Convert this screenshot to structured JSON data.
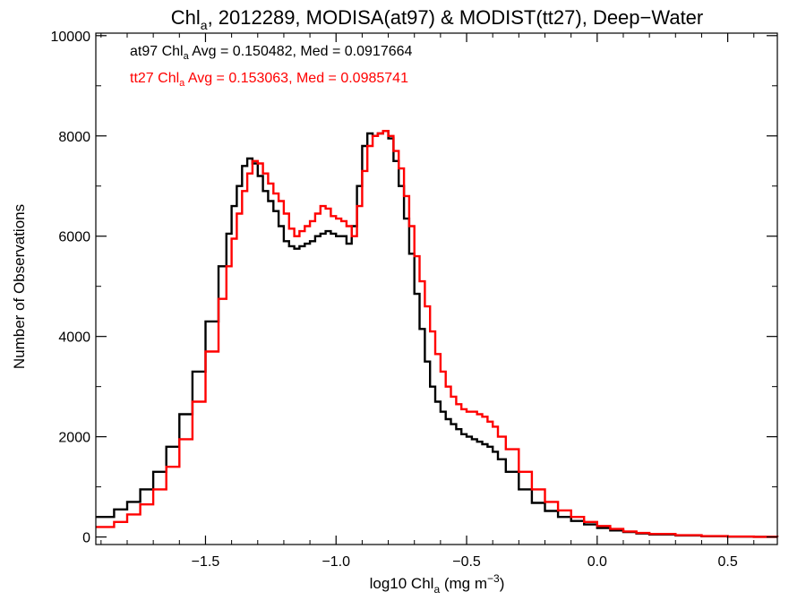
{
  "colors": {
    "background": "#ffffff",
    "axes": "#000000",
    "series_at97": "#000000",
    "series_tt27": "#ff0000"
  },
  "chart_data": {
    "type": "line",
    "style": "histogram-step",
    "title": {
      "pre": "Chl",
      "sub": "a",
      "post": ", 2012289, MODISA(at97) & MODIST(tt27), Deep−Water"
    },
    "xlabel": {
      "pre": "log10 Chl",
      "sub": "a",
      "mid": " (mg m",
      "sup": "−3",
      "post": ")"
    },
    "ylabel": "Number of Observations",
    "xlim": [
      -1.92,
      0.69
    ],
    "ylim": [
      -150,
      10050
    ],
    "x_ticks": [
      -1.5,
      -1.0,
      -0.5,
      0.0,
      0.5
    ],
    "x_tick_labels": [
      "−1.5",
      "−1.0",
      "−0.5",
      "0.0",
      "0.5"
    ],
    "y_ticks": [
      0,
      2000,
      4000,
      6000,
      8000,
      10000
    ],
    "y_tick_labels": [
      "0",
      "2000",
      "4000",
      "6000",
      "8000",
      "10000"
    ],
    "grid": false,
    "annotations": [
      {
        "color": "#000000",
        "pre": "at97 Chl",
        "sub": "a",
        "post": " Avg = 0.150482, Med = 0.0917664"
      },
      {
        "color": "#ff0000",
        "pre": "tt27 Chl",
        "sub": "a",
        "post": " Avg = 0.153063, Med = 0.0985741"
      }
    ],
    "series": [
      {
        "name": "at97",
        "color": "#000000",
        "x": [
          -1.92,
          -1.85,
          -1.8,
          -1.75,
          -1.7,
          -1.65,
          -1.6,
          -1.55,
          -1.5,
          -1.45,
          -1.42,
          -1.4,
          -1.38,
          -1.36,
          -1.34,
          -1.32,
          -1.3,
          -1.28,
          -1.26,
          -1.24,
          -1.22,
          -1.2,
          -1.18,
          -1.16,
          -1.14,
          -1.12,
          -1.1,
          -1.08,
          -1.06,
          -1.04,
          -1.02,
          -1.0,
          -0.98,
          -0.96,
          -0.94,
          -0.92,
          -0.9,
          -0.88,
          -0.86,
          -0.84,
          -0.82,
          -0.8,
          -0.78,
          -0.76,
          -0.74,
          -0.72,
          -0.7,
          -0.68,
          -0.66,
          -0.64,
          -0.62,
          -0.6,
          -0.58,
          -0.56,
          -0.54,
          -0.52,
          -0.5,
          -0.48,
          -0.46,
          -0.44,
          -0.42,
          -0.4,
          -0.38,
          -0.35,
          -0.3,
          -0.25,
          -0.2,
          -0.15,
          -0.1,
          -0.05,
          0.0,
          0.05,
          0.1,
          0.15,
          0.2,
          0.3,
          0.4,
          0.5,
          0.6,
          0.69
        ],
        "y": [
          400,
          550,
          700,
          950,
          1300,
          1800,
          2450,
          3300,
          4300,
          5400,
          6050,
          6600,
          7000,
          7400,
          7550,
          7450,
          7200,
          6900,
          6700,
          6500,
          6200,
          5900,
          5800,
          5750,
          5800,
          5850,
          5900,
          6000,
          6050,
          6100,
          6050,
          6000,
          6000,
          5850,
          6200,
          7000,
          7800,
          8050,
          8000,
          8050,
          8100,
          7950,
          7500,
          7000,
          6350,
          5650,
          4850,
          4150,
          3500,
          3000,
          2700,
          2500,
          2350,
          2250,
          2150,
          2050,
          2000,
          1950,
          1900,
          1850,
          1800,
          1700,
          1550,
          1300,
          950,
          680,
          520,
          400,
          320,
          250,
          180,
          130,
          100,
          70,
          50,
          30,
          15,
          8,
          3,
          0
        ]
      },
      {
        "name": "tt27",
        "color": "#ff0000",
        "x": [
          -1.92,
          -1.85,
          -1.8,
          -1.75,
          -1.7,
          -1.65,
          -1.6,
          -1.55,
          -1.5,
          -1.45,
          -1.42,
          -1.4,
          -1.38,
          -1.36,
          -1.34,
          -1.32,
          -1.3,
          -1.28,
          -1.26,
          -1.24,
          -1.22,
          -1.2,
          -1.18,
          -1.16,
          -1.14,
          -1.12,
          -1.1,
          -1.08,
          -1.06,
          -1.04,
          -1.02,
          -1.0,
          -0.98,
          -0.96,
          -0.94,
          -0.92,
          -0.9,
          -0.88,
          -0.86,
          -0.84,
          -0.82,
          -0.8,
          -0.78,
          -0.76,
          -0.74,
          -0.72,
          -0.7,
          -0.68,
          -0.66,
          -0.64,
          -0.62,
          -0.6,
          -0.58,
          -0.56,
          -0.54,
          -0.52,
          -0.5,
          -0.48,
          -0.46,
          -0.44,
          -0.42,
          -0.4,
          -0.38,
          -0.35,
          -0.3,
          -0.25,
          -0.2,
          -0.15,
          -0.1,
          -0.05,
          0.0,
          0.05,
          0.1,
          0.15,
          0.2,
          0.3,
          0.4,
          0.5,
          0.6,
          0.69
        ],
        "y": [
          200,
          300,
          450,
          650,
          950,
          1400,
          1950,
          2700,
          3700,
          4750,
          5400,
          5950,
          6450,
          6900,
          7250,
          7500,
          7450,
          7250,
          7050,
          6850,
          6700,
          6450,
          6150,
          6000,
          6100,
          6200,
          6300,
          6450,
          6600,
          6550,
          6400,
          6350,
          6300,
          6200,
          6000,
          6600,
          7300,
          7800,
          8000,
          8050,
          8100,
          8000,
          7700,
          7350,
          6800,
          6200,
          5600,
          5100,
          4600,
          4100,
          3650,
          3300,
          3000,
          2800,
          2650,
          2550,
          2500,
          2500,
          2450,
          2400,
          2300,
          2200,
          2000,
          1750,
          1300,
          950,
          700,
          530,
          400,
          300,
          220,
          160,
          110,
          80,
          60,
          35,
          18,
          9,
          4,
          0
        ]
      }
    ]
  }
}
